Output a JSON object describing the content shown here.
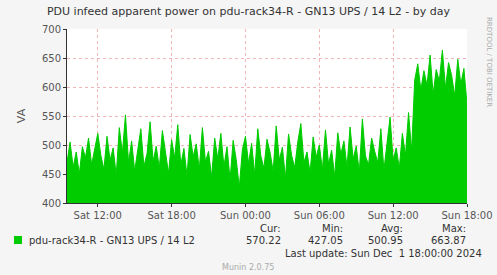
{
  "chart_data": {
    "type": "area",
    "title": "PDU infeed apparent power on pdu-rack34-R - GN13 UPS / 14 L2 - by day",
    "y_label": "VA",
    "categories": [
      null,
      null,
      null,
      null,
      null,
      null,
      null,
      null,
      null,
      null,
      "Sat 12:00",
      null,
      null,
      null,
      null,
      null,
      null,
      null,
      null,
      null,
      null,
      null,
      null,
      null,
      null,
      null,
      null,
      null,
      null,
      null,
      null,
      null,
      null,
      null,
      "Sat 18:00",
      null,
      null,
      null,
      null,
      null,
      null,
      null,
      null,
      null,
      null,
      null,
      null,
      null,
      null,
      null,
      null,
      null,
      null,
      null,
      null,
      null,
      null,
      null,
      "Sun 00:00",
      null,
      null,
      null,
      null,
      null,
      null,
      null,
      null,
      null,
      null,
      null,
      null,
      null,
      null,
      null,
      null,
      null,
      null,
      null,
      null,
      null,
      null,
      null,
      "Sun 06:00",
      null,
      null,
      null,
      null,
      null,
      null,
      null,
      null,
      null,
      null,
      null,
      null,
      null,
      null,
      null,
      null,
      null,
      null,
      null,
      null,
      null,
      null,
      null,
      "Sun 12:00",
      null,
      null,
      null,
      null,
      null,
      null,
      null,
      null,
      null,
      null,
      null,
      null,
      null,
      null,
      null,
      null,
      null,
      null,
      null,
      null,
      null,
      null,
      null,
      "Sun 18:00"
    ],
    "series": [
      {
        "name": "pdu-rack34-R - GN13 UPS / 14 L2",
        "color": "#00cc00",
        "values": [
          470,
          505,
          462,
          488,
          450,
          497,
          478,
          512,
          466,
          490,
          520,
          482,
          458,
          515,
          474,
          495,
          448,
          530,
          486,
          552,
          470,
          507,
          455,
          492,
          528,
          463,
          485,
          540,
          472,
          498,
          460,
          525,
          484,
          451,
          509,
          478,
          535,
          466,
          494,
          447,
          518,
          480,
          502,
          458,
          530,
          471,
          489,
          445,
          512,
          476,
          520,
          463,
          497,
          440,
          508,
          475,
          427.05,
          492,
          515,
          468,
          503,
          449,
          528,
          481,
          460,
          510,
          487,
          455,
          533,
          474,
          496,
          443,
          519,
          482,
          461,
          505,
          537,
          470,
          488,
          452,
          514,
          479,
          500,
          458,
          526,
          467,
          491,
          446,
          521,
          484,
          507,
          462,
          531,
          476,
          498,
          453,
          545,
          481,
          466,
          512,
          489,
          470,
          528,
          457,
          503,
          548,
          474,
          495,
          460,
          520,
          482,
          556,
          490,
          612,
          640,
          595,
          628,
          603,
          655,
          588,
          630,
          610,
          663.87,
          598,
          642,
          620,
          585,
          648,
          605,
          632,
          570.22
        ]
      }
    ],
    "ylim": [
      400,
      700
    ],
    "yticks": [
      400,
      450,
      500,
      550,
      600,
      650,
      700
    ],
    "grid": true,
    "stats": [
      {
        "label": "Cur:",
        "value": 570.22
      },
      {
        "label": "Min:",
        "value": 427.05
      },
      {
        "label": "Avg:",
        "value": 500.95
      },
      {
        "label": "Max:",
        "value": 663.87
      }
    ],
    "last_update": "Last update: Sun Dec  1 18:00:00 2024",
    "footer": "Munin 2.0.75",
    "watermark": "RRDTOOL / TOBI OETIKER"
  }
}
